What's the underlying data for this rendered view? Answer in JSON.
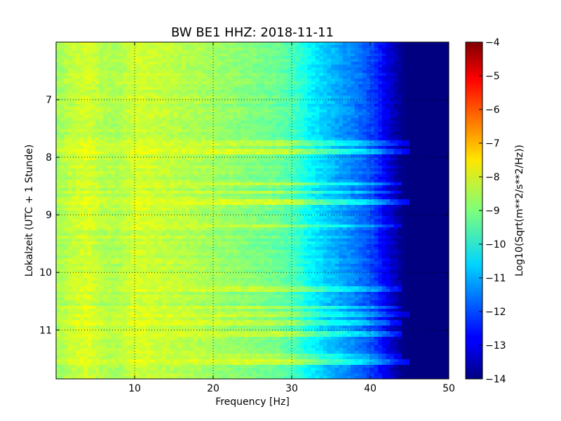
{
  "chart_data": {
    "type": "heatmap",
    "title": "BW BE1 HHZ: 2018-11-11",
    "xlabel": "Frequency [Hz]",
    "ylabel": "Lokalzeit (UTC + 1 Stunde)",
    "xlim": [
      0,
      50
    ],
    "ylim": [
      11.85,
      6.0
    ],
    "y_axis_inverted": true,
    "x_ticks": [
      10,
      20,
      30,
      40,
      50
    ],
    "x_tick_labels": [
      "10",
      "20",
      "30",
      "40",
      "50"
    ],
    "y_ticks": [
      7,
      8,
      9,
      10,
      11
    ],
    "y_tick_labels": [
      "7",
      "8",
      "9",
      "10",
      "11"
    ],
    "grid": true,
    "colormap": "jet",
    "colorbar": {
      "label": "Log10(Sqrt(m**2/s**2/Hz))",
      "range": [
        -14,
        -4
      ],
      "ticks": [
        -14,
        -13,
        -12,
        -11,
        -10,
        -9,
        -8,
        -7,
        -6,
        -5,
        -4
      ],
      "tick_labels": [
        "−14",
        "−13",
        "−12",
        "−11",
        "−10",
        "−9",
        "−8",
        "−7",
        "−6",
        "−5",
        "−4"
      ]
    },
    "frequency_profile": {
      "frequency_hz": [
        0,
        2,
        4,
        6,
        8,
        10,
        12,
        15,
        18,
        20,
        22,
        25,
        28,
        30,
        31,
        32,
        34,
        36,
        38,
        40,
        41,
        42,
        43,
        44,
        45,
        47,
        50
      ],
      "log10_psd": [
        -8.7,
        -8.35,
        -8.15,
        -8.5,
        -8.55,
        -8.2,
        -8.25,
        -8.4,
        -8.55,
        -8.7,
        -8.8,
        -9.0,
        -9.2,
        -9.5,
        -9.8,
        -10.2,
        -10.7,
        -11.1,
        -11.5,
        -12.0,
        -12.4,
        -12.9,
        -13.4,
        -13.85,
        -14.0,
        -14.0,
        -14.0
      ]
    },
    "horizontal_bands": {
      "time_h": [
        7.75,
        7.9,
        8.45,
        8.6,
        8.77,
        9.2,
        10.3,
        10.6,
        10.72,
        10.87,
        11.08,
        11.45,
        11.55
      ],
      "max_freq_hz": [
        45,
        45,
        44,
        44,
        45,
        44,
        44,
        44,
        45,
        44,
        44,
        44,
        45
      ],
      "strength": [
        1.0,
        1.2,
        1.1,
        0.8,
        1.3,
        0.9,
        1.0,
        0.9,
        0.8,
        0.8,
        1.1,
        0.9,
        1.3
      ]
    }
  }
}
